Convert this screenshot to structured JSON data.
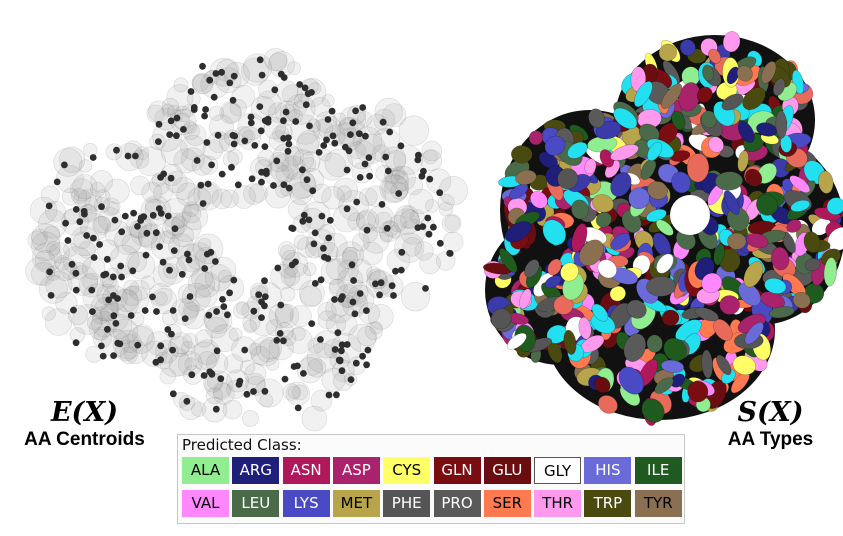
{
  "left_figure": {
    "math_label": "E(X)",
    "sub_label": "AA Centroids"
  },
  "right_figure": {
    "math_label": "S(X)",
    "sub_label": "AA Types"
  },
  "legend": {
    "title": "Predicted Class:",
    "classes": [
      {
        "label": "ALA",
        "color": "#90ee90",
        "text_color": "#000000"
      },
      {
        "label": "ARG",
        "color": "#1f1f7a",
        "text_color": "#ffffff"
      },
      {
        "label": "ASN",
        "color": "#b0185c",
        "text_color": "#ffffff"
      },
      {
        "label": "ASP",
        "color": "#a8236b",
        "text_color": "#ffffff"
      },
      {
        "label": "CYS",
        "color": "#ffff66",
        "text_color": "#000000"
      },
      {
        "label": "GLN",
        "color": "#7a0d12",
        "text_color": "#ffffff"
      },
      {
        "label": "GLU",
        "color": "#6a0d10",
        "text_color": "#ffffff"
      },
      {
        "label": "GLY",
        "color": "#ffffff",
        "text_color": "#000000"
      },
      {
        "label": "HIS",
        "color": "#6a6ad8",
        "text_color": "#ffffff"
      },
      {
        "label": "ILE",
        "color": "#1f5a1f",
        "text_color": "#ffffff"
      },
      {
        "label": "VAL",
        "color": "#ff88ff",
        "text_color": "#000000"
      },
      {
        "label": "LEU",
        "color": "#4a6a4a",
        "text_color": "#ffffff"
      },
      {
        "label": "LYS",
        "color": "#4a4ac4",
        "text_color": "#ffffff"
      },
      {
        "label": "MET",
        "color": "#b8a44a",
        "text_color": "#000000"
      },
      {
        "label": "PHE",
        "color": "#555555",
        "text_color": "#ffffff"
      },
      {
        "label": "PRO",
        "color": "#5a5a5a",
        "text_color": "#ffffff"
      },
      {
        "label": "SER",
        "color": "#ff7a50",
        "text_color": "#000000"
      },
      {
        "label": "THR",
        "color": "#ff99ee",
        "text_color": "#000000"
      },
      {
        "label": "TRP",
        "color": "#4a4a10",
        "text_color": "#ffffff"
      },
      {
        "label": "TYR",
        "color": "#8a7050",
        "text_color": "#000000"
      }
    ]
  }
}
